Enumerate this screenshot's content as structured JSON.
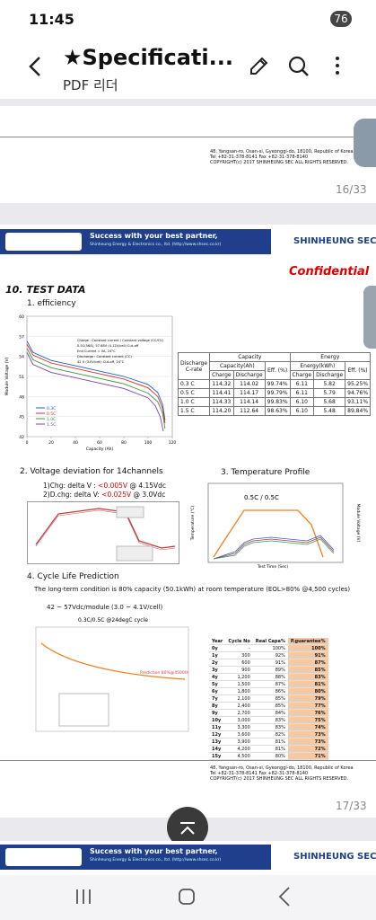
{
  "status": {
    "time": "11:45",
    "battery": "76"
  },
  "app": {
    "title": "★Specificati...",
    "subtitle": "PDF 리더"
  },
  "page16": {
    "address": [
      "48, Yangsan-ro, Osan-si, Gyeonggi-do, 18100, Republic of Korea",
      "Tel +82-31-378-8141 Fax +82-31-378-8140",
      "COPYRIGHT(c) 2017 SHINHEUNG SEC ALL RIGHTS RESERVED."
    ],
    "page_number": "16/33"
  },
  "banner": {
    "slogan": "Success with your best partner,",
    "company_line": "Shinheung Energy & Electronics co., ltd. (http://www.shsec.co.kr)",
    "brand": "SHINHEUNG SEC"
  },
  "page17": {
    "confidential": "Confidential",
    "section": "10. TEST DATA",
    "efficiency": {
      "heading": "1. efficiency",
      "chart": {
        "type": "line",
        "ylabel": "Module Voltage (V)",
        "xlabel": "Capacity (Ah)",
        "notes": [
          "Charge : Constant current / Constant voltage (CC/CV)",
          "0.5C(56A), 57.68V (4.12V/cell) Cut-off",
          "End Current = 0A, 24°C",
          "Discharge : Constant current (CC)",
          "42 V (3.0V/cell) Cut-off, 24°C"
        ],
        "xlim": [
          0,
          120
        ],
        "xticks": [
          0,
          20,
          40,
          60,
          80,
          100,
          120
        ],
        "ylim": [
          42,
          60
        ],
        "yticks": [
          42,
          45,
          48,
          51,
          54,
          57,
          60
        ],
        "series": [
          {
            "name": "0.3C",
            "color": "#1f5fbf",
            "x": [
              0,
              5,
              20,
              40,
              60,
              80,
              100,
              108,
              112,
              114
            ],
            "values": [
              56.3,
              54.6,
              53.4,
              52.6,
              51.8,
              51.0,
              49.8,
              48.6,
              46.8,
              44.5
            ]
          },
          {
            "name": "0.5C",
            "color": "#d03030",
            "x": [
              0,
              5,
              20,
              40,
              60,
              80,
              100,
              108,
              112,
              114
            ],
            "values": [
              55.8,
              54.2,
              53.0,
              52.2,
              51.4,
              50.6,
              49.3,
              48.0,
              46.2,
              44.0
            ]
          },
          {
            "name": "1.0C",
            "color": "#3a9a3a",
            "x": [
              0,
              5,
              20,
              40,
              60,
              80,
              100,
              108,
              112,
              114
            ],
            "values": [
              55.2,
              53.5,
              52.3,
              51.5,
              50.7,
              49.9,
              48.5,
              47.2,
              45.5,
              43.2
            ]
          },
          {
            "name": "1.5C",
            "color": "#8040b0",
            "x": [
              0,
              5,
              20,
              40,
              60,
              80,
              100,
              106,
              110,
              112.6
            ],
            "values": [
              54.6,
              52.8,
              51.6,
              50.8,
              50.0,
              49.2,
              47.8,
              46.6,
              45.0,
              42.8
            ]
          }
        ]
      },
      "table": {
        "row_head": [
          "Discharge",
          "C-rate"
        ],
        "capacity": "Capacity",
        "capacity_sub": "Capacity(Ah)",
        "energy": "Energy",
        "energy_sub": "Energy(kWh)",
        "eff": "Eff. (%)",
        "charge": "Charge",
        "discharge": "Discharge",
        "rows": [
          [
            "0.3 C",
            "114.32",
            "114.02",
            "99.74%",
            "6.11",
            "5.82",
            "95.25%"
          ],
          [
            "0.5 C",
            "114.41",
            "114.17",
            "99.79%",
            "6.11",
            "5.79",
            "94.76%"
          ],
          [
            "1.0 C",
            "114.33",
            "114.14",
            "99.83%",
            "6.10",
            "5.68",
            "93.11%"
          ],
          [
            "1.5 C",
            "114.20",
            "112.64",
            "98.63%",
            "6.10",
            "5.48",
            "89.84%"
          ]
        ]
      }
    },
    "voltage": {
      "heading": "2. Voltage deviation for 14channels",
      "line1_pre": "1)Chg: delta V : ",
      "line1_val": "<0.005V",
      "line1_post": " @ 4.15Vdc",
      "line2_pre": "2)D.chg: delta V: ",
      "line2_val": "<0.025V",
      "line2_post": " @ 3.0Vdc"
    },
    "temperature": {
      "heading": "3. Temperature Profile",
      "chart_title": "0.5C / 0.5C",
      "xlabel": "Test Time (Sec)",
      "ylabel": "Temperature (℃)",
      "y2label": "Module Voltage (V)"
    },
    "cycle": {
      "heading": "4. Cycle Life Prediction",
      "condition": "The long-term condition is 80% capacity (50.1kWh) at room temperature (EOL>80% @4,500 cycles)",
      "range": "42 ~ 57Vdc/module (3.0 ~ 4.1V/cell)",
      "chart_title": "0.3C/0.5C @24degC cycle",
      "prediction": "Prediction 80%@4500th",
      "table": {
        "headers": [
          "Year",
          "Cycle No",
          "Real Capa%",
          "P.guarantee%"
        ],
        "rows": [
          [
            "0y",
            "-",
            "100%",
            "100%"
          ],
          [
            "1y",
            "300",
            "92%",
            "91%"
          ],
          [
            "2y",
            "600",
            "91%",
            "87%"
          ],
          [
            "3y",
            "900",
            "89%",
            "85%"
          ],
          [
            "4y",
            "1,200",
            "88%",
            "83%"
          ],
          [
            "5y",
            "1,500",
            "87%",
            "81%"
          ],
          [
            "6y",
            "1,800",
            "86%",
            "80%"
          ],
          [
            "7y",
            "2,100",
            "85%",
            "79%"
          ],
          [
            "8y",
            "2,400",
            "85%",
            "77%"
          ],
          [
            "9y",
            "2,700",
            "84%",
            "76%"
          ],
          [
            "10y",
            "3,000",
            "83%",
            "75%"
          ],
          [
            "11y",
            "3,300",
            "83%",
            "74%"
          ],
          [
            "12y",
            "3,600",
            "82%",
            "73%"
          ],
          [
            "13y",
            "3,900",
            "81%",
            "73%"
          ],
          [
            "14y",
            "4,200",
            "81%",
            "72%"
          ],
          [
            "15y",
            "4,500",
            "80%",
            "71%"
          ]
        ]
      }
    },
    "address": [
      "48, Yangsan-ro, Osan-si, Gyeonggi-do, 18100, Republic of Korea",
      "Tel +82-31-378-8141 Fax +82-31-378-8140",
      "COPYRIGHT(c) 2017 SHINHEUNG SEC ALL RIGHTS RESERVED."
    ],
    "page_number": "17/33"
  }
}
